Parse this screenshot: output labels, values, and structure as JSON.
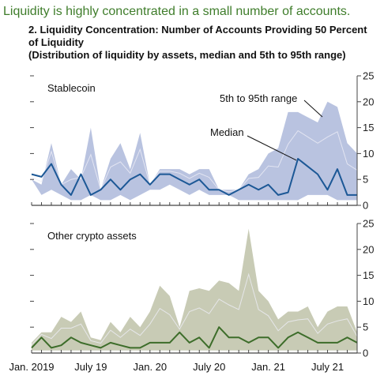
{
  "headline": "Liquidity is highly concentrated in a small number of accounts.",
  "figure": {
    "title_line1": "2. Liquidity Concentration: Number of Accounts Providing 50 Percent",
    "title_line2": "of Liquidity",
    "title_line3": "(Distribution of liquidity by assets, median and 5th to 95th range)"
  },
  "chart_data": [
    {
      "type": "area",
      "title": "Stablecoin",
      "x": [
        "2019-01",
        "2019-02",
        "2019-03",
        "2019-04",
        "2019-05",
        "2019-06",
        "2019-07",
        "2019-08",
        "2019-09",
        "2019-10",
        "2019-11",
        "2019-12",
        "2020-01",
        "2020-02",
        "2020-03",
        "2020-04",
        "2020-05",
        "2020-06",
        "2020-07",
        "2020-08",
        "2020-09",
        "2020-10",
        "2020-11",
        "2020-12",
        "2021-01",
        "2021-02",
        "2021-03",
        "2021-04",
        "2021-05",
        "2021-06",
        "2021-07",
        "2021-08",
        "2021-09",
        "2021-10"
      ],
      "x_tick_labels": [
        "Jan. 2019",
        "July 19",
        "Jan. 20",
        "July 20",
        "Jan. 21",
        "July 21"
      ],
      "y_axis_side": "right",
      "ylim": [
        0,
        25
      ],
      "y_ticks": [
        0,
        5,
        10,
        15,
        20,
        25
      ],
      "series": [
        {
          "name": "5th to 95th range",
          "upper": [
            5,
            4,
            12,
            4,
            7,
            5,
            15,
            3,
            9,
            12,
            7,
            14,
            4,
            7,
            7,
            7,
            6,
            7,
            7,
            3,
            3,
            3,
            6,
            7,
            10,
            11,
            18,
            18,
            17,
            16,
            20,
            19,
            12,
            10
          ],
          "lower": [
            5,
            2,
            3,
            2,
            1,
            1,
            2,
            1,
            1,
            2,
            1,
            2,
            3,
            3,
            4,
            3,
            2,
            3,
            2,
            2,
            2,
            1,
            1,
            1,
            1,
            1,
            1,
            1,
            2,
            2,
            2,
            1,
            1,
            1
          ]
        },
        {
          "name": "Median",
          "values": [
            6,
            5.5,
            8,
            4,
            2,
            6,
            2,
            3,
            5,
            3,
            5,
            6,
            4,
            6,
            6,
            5,
            4,
            5,
            3,
            3,
            2,
            3,
            4,
            3,
            4,
            2,
            2.5,
            9,
            7.5,
            6,
            3,
            7,
            2,
            2
          ]
        }
      ],
      "annotations": [
        "Stablecoin",
        "5th to 95th range",
        "Median"
      ]
    },
    {
      "type": "area",
      "title": "Other crypto assets",
      "x": [
        "2019-01",
        "2019-02",
        "2019-03",
        "2019-04",
        "2019-05",
        "2019-06",
        "2019-07",
        "2019-08",
        "2019-09",
        "2019-10",
        "2019-11",
        "2019-12",
        "2020-01",
        "2020-02",
        "2020-03",
        "2020-04",
        "2020-05",
        "2020-06",
        "2020-07",
        "2020-08",
        "2020-09",
        "2020-10",
        "2020-11",
        "2020-12",
        "2021-01",
        "2021-02",
        "2021-03",
        "2021-04",
        "2021-05",
        "2021-06",
        "2021-07",
        "2021-08",
        "2021-09",
        "2021-10"
      ],
      "x_tick_labels": [
        "Jan. 2019",
        "July 19",
        "Jan. 20",
        "July 20",
        "Jan. 21",
        "July 21"
      ],
      "y_axis_side": "right",
      "ylim": [
        0,
        25
      ],
      "y_ticks": [
        0,
        5,
        10,
        15,
        20,
        25
      ],
      "series": [
        {
          "name": "5th to 95th range",
          "upper": [
            2,
            4,
            4,
            7,
            6,
            8,
            3,
            2.5,
            6,
            4,
            7,
            5,
            8,
            13,
            11,
            5,
            12,
            12.5,
            12,
            14,
            13.5,
            12,
            24,
            12,
            10,
            6.5,
            8,
            8,
            9,
            5,
            8,
            9,
            9,
            4
          ],
          "lower": [
            0.5,
            0.5,
            0.5,
            0.5,
            0.5,
            0.5,
            0.5,
            0.5,
            0.5,
            0.5,
            0.5,
            0.5,
            0.5,
            0.5,
            0.5,
            0.5,
            0.5,
            0.5,
            0.5,
            0.5,
            0.5,
            0.5,
            0.5,
            0.5,
            0.5,
            0.5,
            0.5,
            0.5,
            0.5,
            0.5,
            0.5,
            0.5,
            0.5,
            0.5
          ]
        },
        {
          "name": "Median",
          "values": [
            1,
            3,
            1,
            1.5,
            3,
            2,
            1.5,
            1,
            2,
            1.5,
            1,
            1,
            2,
            2,
            2,
            4,
            2,
            3,
            1,
            5,
            3,
            3,
            2,
            3,
            3,
            1,
            3,
            4,
            3,
            2,
            2,
            2,
            3,
            2
          ]
        }
      ],
      "annotations": [
        "Other crypto assets"
      ]
    }
  ],
  "colors": {
    "headline": "#3f7d2b",
    "stable_band": "#b9c3e0",
    "stable_line": "#1c5896",
    "other_band": "#c8cbb5",
    "other_line": "#3d6d2a",
    "axis": "#444444",
    "inner_light": "#eeeef6"
  }
}
